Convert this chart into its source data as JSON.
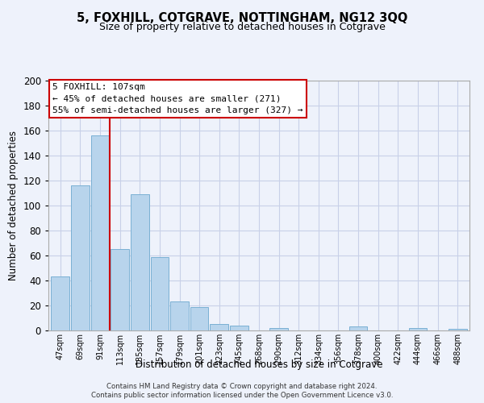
{
  "title": "5, FOXHILL, COTGRAVE, NOTTINGHAM, NG12 3QQ",
  "subtitle": "Size of property relative to detached houses in Cotgrave",
  "xlabel": "Distribution of detached houses by size in Cotgrave",
  "ylabel": "Number of detached properties",
  "bar_labels": [
    "47sqm",
    "69sqm",
    "91sqm",
    "113sqm",
    "135sqm",
    "157sqm",
    "179sqm",
    "201sqm",
    "223sqm",
    "245sqm",
    "268sqm",
    "290sqm",
    "312sqm",
    "334sqm",
    "356sqm",
    "378sqm",
    "400sqm",
    "422sqm",
    "444sqm",
    "466sqm",
    "488sqm"
  ],
  "bar_values": [
    43,
    116,
    156,
    65,
    109,
    59,
    23,
    19,
    5,
    4,
    0,
    2,
    0,
    0,
    0,
    3,
    0,
    0,
    2,
    0,
    1
  ],
  "bar_color": "#b8d4ec",
  "bar_edge_color": "#7ab0d4",
  "ylim": [
    0,
    200
  ],
  "yticks": [
    0,
    20,
    40,
    60,
    80,
    100,
    120,
    140,
    160,
    180,
    200
  ],
  "vline_x": 2.5,
  "vline_color": "#cc0000",
  "annotation_title": "5 FOXHILL: 107sqm",
  "annotation_line1": "← 45% of detached houses are smaller (271)",
  "annotation_line2": "55% of semi-detached houses are larger (327) →",
  "footer_line1": "Contains HM Land Registry data © Crown copyright and database right 2024.",
  "footer_line2": "Contains public sector information licensed under the Open Government Licence v3.0.",
  "background_color": "#eef2fb",
  "plot_background": "#eef2fb",
  "grid_color": "#c8d0e8"
}
